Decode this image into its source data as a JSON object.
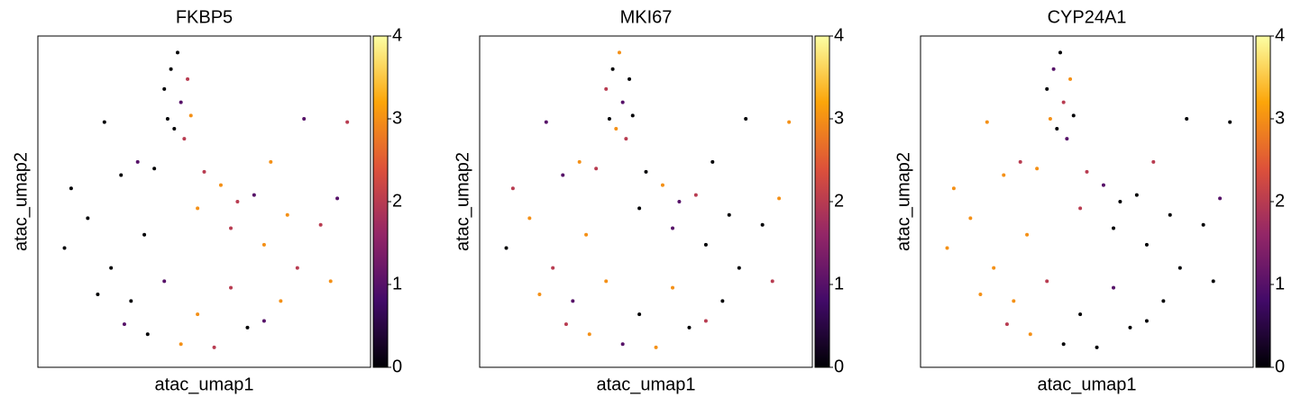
{
  "chart_data": [
    {
      "type": "scatter",
      "title": "FKBP5",
      "x_label": "atac_umap1",
      "y_label": "atac_umap2",
      "x": [
        4.2,
        4.0,
        4.5,
        3.8,
        4.3,
        4.6,
        4.1,
        3.9,
        4.4,
        2.0,
        8.0,
        9.3,
        7.0,
        1.0,
        0.8,
        1.5,
        2.5,
        3.0,
        3.5,
        5.0,
        5.5,
        6.0,
        6.5,
        7.5,
        8.5,
        9.0,
        2.2,
        3.2,
        4.8,
        5.8,
        6.8,
        7.8,
        8.8,
        1.8,
        2.8,
        3.8,
        4.8,
        5.8,
        6.8,
        7.3,
        3.3,
        4.3,
        5.3,
        6.3,
        2.6
      ],
      "y": [
        9.5,
        9.0,
        8.7,
        8.4,
        8.0,
        7.6,
        7.2,
        7.5,
        6.9,
        7.4,
        7.5,
        7.4,
        6.2,
        5.4,
        3.6,
        4.5,
        5.8,
        6.2,
        6.0,
        5.9,
        5.5,
        5.0,
        5.2,
        4.6,
        4.3,
        5.1,
        3.0,
        4.0,
        4.8,
        4.2,
        3.7,
        3.0,
        2.6,
        2.2,
        2.0,
        2.6,
        1.6,
        2.4,
        1.4,
        2.0,
        1.0,
        0.7,
        0.6,
        1.2,
        1.3
      ],
      "values": [
        0,
        0,
        2,
        0,
        1,
        3,
        0,
        0,
        2,
        0,
        1,
        2,
        3,
        0,
        0,
        0,
        0,
        1,
        0,
        2,
        3,
        2,
        1,
        3,
        2,
        1,
        0,
        0,
        3,
        2,
        3,
        2,
        3,
        0,
        0,
        1,
        3,
        2,
        1,
        3,
        0,
        3,
        2,
        0,
        1
      ],
      "xlim": [
        0,
        10
      ],
      "ylim": [
        0,
        10
      ],
      "clim": [
        0,
        4
      ],
      "cticks": [
        0,
        1,
        2,
        3,
        4
      ],
      "colormap": [
        "#000004",
        "#420a68",
        "#932667",
        "#dd513a",
        "#fca50a",
        "#fcffa4"
      ]
    },
    {
      "type": "scatter",
      "title": "MKI67",
      "x_label": "atac_umap1",
      "y_label": "atac_umap2",
      "x": [
        4.2,
        4.0,
        4.5,
        3.8,
        4.3,
        4.6,
        4.1,
        3.9,
        4.4,
        2.0,
        8.0,
        9.3,
        7.0,
        1.0,
        0.8,
        1.5,
        2.5,
        3.0,
        3.5,
        5.0,
        5.5,
        6.0,
        6.5,
        7.5,
        8.5,
        9.0,
        2.2,
        3.2,
        4.8,
        5.8,
        6.8,
        7.8,
        8.8,
        1.8,
        2.8,
        3.8,
        4.8,
        5.8,
        6.8,
        7.3,
        3.3,
        4.3,
        5.3,
        6.3,
        2.6
      ],
      "y": [
        9.5,
        9.0,
        8.7,
        8.4,
        8.0,
        7.6,
        7.2,
        7.5,
        6.9,
        7.4,
        7.5,
        7.4,
        6.2,
        5.4,
        3.6,
        4.5,
        5.8,
        6.2,
        6.0,
        5.9,
        5.5,
        5.0,
        5.2,
        4.6,
        4.3,
        5.1,
        3.0,
        4.0,
        4.8,
        4.2,
        3.7,
        3.0,
        2.6,
        2.2,
        2.0,
        2.6,
        1.6,
        2.4,
        1.4,
        2.0,
        1.0,
        0.7,
        0.6,
        1.2,
        1.3
      ],
      "values": [
        3,
        0,
        0,
        2,
        1,
        0,
        3,
        0,
        2,
        1,
        0,
        3,
        0,
        2,
        0,
        3,
        1,
        3,
        2,
        0,
        3,
        1,
        2,
        0,
        0,
        3,
        2,
        3,
        0,
        1,
        0,
        0,
        2,
        3,
        1,
        3,
        0,
        3,
        2,
        0,
        3,
        1,
        3,
        0,
        2
      ],
      "xlim": [
        0,
        10
      ],
      "ylim": [
        0,
        10
      ],
      "clim": [
        0,
        4
      ],
      "cticks": [
        0,
        1,
        2,
        3,
        4
      ],
      "colormap": [
        "#000004",
        "#420a68",
        "#932667",
        "#dd513a",
        "#fca50a",
        "#fcffa4"
      ]
    },
    {
      "type": "scatter",
      "title": "CYP24A1",
      "x_label": "atac_umap1",
      "y_label": "atac_umap2",
      "x": [
        4.2,
        4.0,
        4.5,
        3.8,
        4.3,
        4.6,
        4.1,
        3.9,
        4.4,
        2.0,
        8.0,
        9.3,
        7.0,
        1.0,
        0.8,
        1.5,
        2.5,
        3.0,
        3.5,
        5.0,
        5.5,
        6.0,
        6.5,
        7.5,
        8.5,
        9.0,
        2.2,
        3.2,
        4.8,
        5.8,
        6.8,
        7.8,
        8.8,
        1.8,
        2.8,
        3.8,
        4.8,
        5.8,
        6.8,
        7.3,
        3.3,
        4.3,
        5.3,
        6.3,
        2.6
      ],
      "y": [
        9.5,
        9.0,
        8.7,
        8.4,
        8.0,
        7.6,
        7.2,
        7.5,
        6.9,
        7.4,
        7.5,
        7.4,
        6.2,
        5.4,
        3.6,
        4.5,
        5.8,
        6.2,
        6.0,
        5.9,
        5.5,
        5.0,
        5.2,
        4.6,
        4.3,
        5.1,
        3.0,
        4.0,
        4.8,
        4.2,
        3.7,
        3.0,
        2.6,
        2.2,
        2.0,
        2.6,
        1.6,
        2.4,
        1.4,
        2.0,
        1.0,
        0.7,
        0.6,
        1.2,
        1.3
      ],
      "values": [
        0,
        1,
        3,
        0,
        2,
        0,
        0,
        3,
        1,
        3,
        0,
        0,
        2,
        3,
        3,
        3,
        3,
        2,
        3,
        2,
        1,
        0,
        0,
        0,
        0,
        1,
        3,
        3,
        2,
        0,
        0,
        0,
        0,
        3,
        3,
        2,
        0,
        1,
        0,
        0,
        3,
        0,
        0,
        0,
        2
      ],
      "xlim": [
        0,
        10
      ],
      "ylim": [
        0,
        10
      ],
      "clim": [
        0,
        4
      ],
      "cticks": [
        0,
        1,
        2,
        3,
        4
      ],
      "colormap": [
        "#000004",
        "#420a68",
        "#932667",
        "#dd513a",
        "#fca50a",
        "#fcffa4"
      ]
    }
  ]
}
